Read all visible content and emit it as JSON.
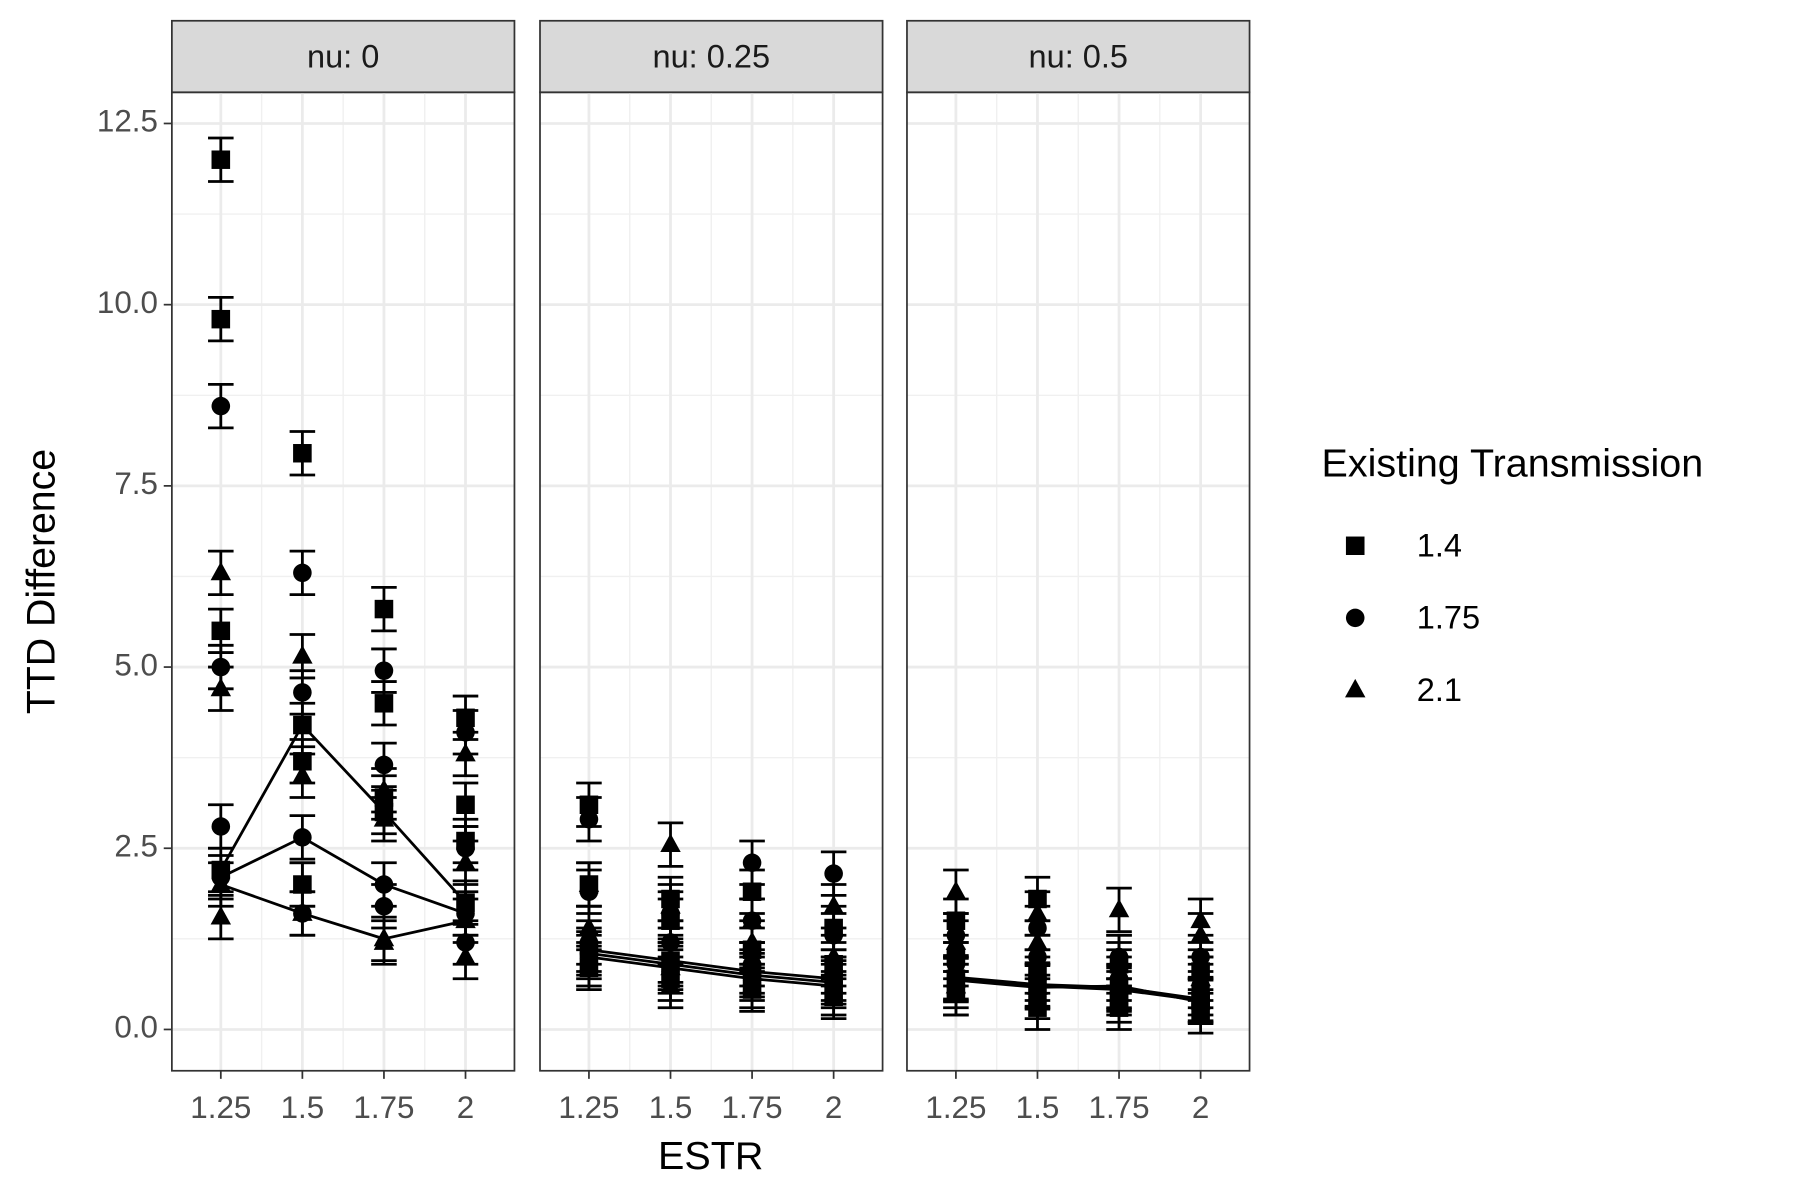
{
  "xlabel": "ESTR",
  "ylabel": "TTD Difference",
  "legend_title": "Existing Transmission",
  "legend_position": "right",
  "chart_data": [
    {
      "type": "scatter",
      "title": "nu: 0",
      "x": [
        1.25,
        1.5,
        1.75,
        2
      ],
      "xlim": [
        1.1,
        2.15
      ],
      "ylim": [
        -0.57,
        12.93
      ],
      "xticks": [
        1.25,
        1.5,
        1.75,
        2
      ],
      "yticks": [
        {
          "value": 0,
          "label": "0.0"
        },
        2.5,
        {
          "value": 5,
          "label": "5.0"
        },
        7.5,
        {
          "value": 10,
          "label": "10.0"
        },
        12.5
      ],
      "grid": true,
      "color": "#000000",
      "series": [
        {
          "name": "1.4",
          "marker": "square",
          "line": true,
          "values": [
            2.2,
            4.2,
            3.0,
            1.75
          ],
          "errors": [
            0.3,
            0.3,
            0.3,
            0.3
          ]
        },
        {
          "name": "1.75",
          "marker": "circle",
          "line": true,
          "values": [
            2.1,
            2.65,
            2.0,
            1.6
          ],
          "errors": [
            0.3,
            0.3,
            0.3,
            0.3
          ]
        },
        {
          "name": "2.1",
          "marker": "triangle",
          "line": true,
          "values": [
            2.0,
            1.6,
            1.25,
            1.5
          ],
          "errors": [
            0.3,
            0.3,
            0.3,
            0.3
          ]
        },
        {
          "name": "1.4",
          "marker": "square",
          "line": false,
          "values": [
            12.0,
            7.95,
            5.8,
            4.3
          ],
          "errors": [
            0.3,
            0.3,
            0.3,
            0.3
          ]
        },
        {
          "name": "1.4",
          "marker": "square",
          "line": false,
          "values": [
            9.8,
            3.7,
            4.5,
            3.1
          ],
          "errors": [
            0.3,
            0.3,
            0.3,
            0.3
          ]
        },
        {
          "name": "1.4",
          "marker": "square",
          "line": false,
          "values": [
            5.5,
            2.0,
            3.2,
            2.6
          ],
          "errors": [
            0.3,
            0.3,
            0.3,
            0.3
          ]
        },
        {
          "name": "1.75",
          "marker": "circle",
          "line": false,
          "values": [
            8.6,
            6.3,
            4.95,
            4.1
          ],
          "errors": [
            0.3,
            0.3,
            0.3,
            0.3
          ]
        },
        {
          "name": "1.75",
          "marker": "circle",
          "line": false,
          "values": [
            5.0,
            4.65,
            3.65,
            2.5
          ],
          "errors": [
            0.3,
            0.3,
            0.3,
            0.3
          ]
        },
        {
          "name": "1.75",
          "marker": "circle",
          "line": false,
          "values": [
            2.8,
            1.6,
            1.7,
            1.2
          ],
          "errors": [
            0.3,
            0.3,
            0.3,
            0.3
          ]
        },
        {
          "name": "2.1",
          "marker": "triangle",
          "line": false,
          "values": [
            6.3,
            5.15,
            3.3,
            3.8
          ],
          "errors": [
            0.3,
            0.3,
            0.3,
            0.3
          ]
        },
        {
          "name": "2.1",
          "marker": "triangle",
          "line": false,
          "values": [
            4.7,
            3.5,
            2.9,
            2.3
          ],
          "errors": [
            0.3,
            0.3,
            0.3,
            0.3
          ]
        },
        {
          "name": "2.1",
          "marker": "triangle",
          "line": false,
          "values": [
            1.55,
            2.0,
            1.2,
            1.0
          ],
          "errors": [
            0.3,
            0.3,
            0.3,
            0.3
          ]
        }
      ]
    },
    {
      "type": "scatter",
      "title": "nu: 0.25",
      "x": [
        1.25,
        1.5,
        1.75,
        2
      ],
      "xlim": [
        1.1,
        2.15
      ],
      "ylim": [
        -0.57,
        12.93
      ],
      "xticks": [
        1.25,
        1.5,
        1.75,
        2
      ],
      "yticks": [
        {
          "value": 0,
          "label": "0.0"
        },
        2.5,
        {
          "value": 5,
          "label": "5.0"
        },
        7.5,
        {
          "value": 10,
          "label": "10.0"
        },
        12.5
      ],
      "grid": true,
      "color": "#000000",
      "series": [
        {
          "name": "1.4",
          "marker": "square",
          "line": true,
          "values": [
            1.1,
            0.95,
            0.8,
            0.7
          ],
          "errors": [
            0.3,
            0.3,
            0.3,
            0.3
          ]
        },
        {
          "name": "1.75",
          "marker": "circle",
          "line": true,
          "values": [
            1.05,
            0.9,
            0.75,
            0.65
          ],
          "errors": [
            0.3,
            0.3,
            0.3,
            0.3
          ]
        },
        {
          "name": "2.1",
          "marker": "triangle",
          "line": true,
          "values": [
            1.0,
            0.85,
            0.7,
            0.6
          ],
          "errors": [
            0.3,
            0.3,
            0.3,
            0.3
          ]
        },
        {
          "name": "1.4",
          "marker": "square",
          "line": false,
          "values": [
            3.1,
            1.8,
            1.9,
            1.4
          ],
          "errors": [
            0.3,
            0.3,
            0.3,
            0.3
          ]
        },
        {
          "name": "1.4",
          "marker": "square",
          "line": false,
          "values": [
            2.0,
            1.5,
            1.1,
            0.9
          ],
          "errors": [
            0.3,
            0.3,
            0.3,
            0.3
          ]
        },
        {
          "name": "1.4",
          "marker": "square",
          "line": false,
          "values": [
            0.85,
            0.7,
            0.55,
            0.45
          ],
          "errors": [
            0.3,
            0.3,
            0.3,
            0.3
          ]
        },
        {
          "name": "1.75",
          "marker": "circle",
          "line": false,
          "values": [
            2.9,
            1.6,
            2.3,
            2.15
          ],
          "errors": [
            0.3,
            0.3,
            0.3,
            0.3
          ]
        },
        {
          "name": "1.75",
          "marker": "circle",
          "line": false,
          "values": [
            1.9,
            1.2,
            1.5,
            1.3
          ],
          "errors": [
            0.3,
            0.3,
            0.3,
            0.3
          ]
        },
        {
          "name": "1.75",
          "marker": "circle",
          "line": false,
          "values": [
            1.2,
            0.8,
            0.9,
            0.8
          ],
          "errors": [
            0.3,
            0.3,
            0.3,
            0.3
          ]
        },
        {
          "name": "2.1",
          "marker": "triangle",
          "line": false,
          "values": [
            2.0,
            2.55,
            1.5,
            1.7
          ],
          "errors": [
            0.3,
            0.3,
            0.3,
            0.3
          ]
        },
        {
          "name": "2.1",
          "marker": "triangle",
          "line": false,
          "values": [
            1.4,
            1.7,
            1.2,
            1.0
          ],
          "errors": [
            0.3,
            0.3,
            0.3,
            0.3
          ]
        },
        {
          "name": "2.1",
          "marker": "triangle",
          "line": false,
          "values": [
            0.9,
            0.6,
            0.6,
            0.5
          ],
          "errors": [
            0.3,
            0.3,
            0.3,
            0.3
          ]
        }
      ]
    },
    {
      "type": "scatter",
      "title": "nu: 0.5",
      "x": [
        1.25,
        1.5,
        1.75,
        2
      ],
      "xlim": [
        1.1,
        2.15
      ],
      "ylim": [
        -0.57,
        12.93
      ],
      "xticks": [
        1.25,
        1.5,
        1.75,
        2
      ],
      "yticks": [
        {
          "value": 0,
          "label": "0.0"
        },
        2.5,
        {
          "value": 5,
          "label": "5.0"
        },
        7.5,
        {
          "value": 10,
          "label": "10.0"
        },
        12.5
      ],
      "grid": true,
      "color": "#000000",
      "series": [
        {
          "name": "1.4",
          "marker": "square",
          "line": true,
          "values": [
            0.7,
            0.6,
            0.55,
            0.4
          ],
          "errors": [
            0.3,
            0.3,
            0.3,
            0.3
          ]
        },
        {
          "name": "1.75",
          "marker": "circle",
          "line": true,
          "values": [
            0.72,
            0.62,
            0.58,
            0.42
          ],
          "errors": [
            0.3,
            0.3,
            0.3,
            0.3
          ]
        },
        {
          "name": "2.1",
          "marker": "triangle",
          "line": true,
          "values": [
            0.68,
            0.58,
            0.6,
            0.38
          ],
          "errors": [
            0.3,
            0.3,
            0.3,
            0.3
          ]
        },
        {
          "name": "1.4",
          "marker": "square",
          "line": false,
          "values": [
            1.5,
            1.8,
            0.9,
            0.8
          ],
          "errors": [
            0.3,
            0.3,
            0.3,
            0.3
          ]
        },
        {
          "name": "1.4",
          "marker": "square",
          "line": false,
          "values": [
            1.0,
            0.8,
            0.4,
            0.4
          ],
          "errors": [
            0.3,
            0.3,
            0.3,
            0.3
          ]
        },
        {
          "name": "1.4",
          "marker": "square",
          "line": false,
          "values": [
            0.5,
            0.3,
            0.3,
            0.25
          ],
          "errors": [
            0.3,
            0.3,
            0.3,
            0.3
          ]
        },
        {
          "name": "1.75",
          "marker": "circle",
          "line": false,
          "values": [
            1.3,
            1.4,
            1.0,
            1.0
          ],
          "errors": [
            0.3,
            0.3,
            0.3,
            0.3
          ]
        },
        {
          "name": "1.75",
          "marker": "circle",
          "line": false,
          "values": [
            0.9,
            1.0,
            0.7,
            0.6
          ],
          "errors": [
            0.3,
            0.3,
            0.3,
            0.3
          ]
        },
        {
          "name": "1.75",
          "marker": "circle",
          "line": false,
          "values": [
            0.5,
            0.45,
            0.5,
            0.5
          ],
          "errors": [
            0.3,
            0.3,
            0.3,
            0.3
          ]
        },
        {
          "name": "2.1",
          "marker": "triangle",
          "line": false,
          "values": [
            1.9,
            1.6,
            1.65,
            1.5
          ],
          "errors": [
            0.3,
            0.3,
            0.3,
            0.3
          ]
        },
        {
          "name": "2.1",
          "marker": "triangle",
          "line": false,
          "values": [
            1.2,
            1.2,
            1.0,
            1.3
          ],
          "errors": [
            0.3,
            0.3,
            0.3,
            0.3
          ]
        },
        {
          "name": "2.1",
          "marker": "triangle",
          "line": false,
          "values": [
            0.6,
            0.7,
            0.8,
            0.7
          ],
          "errors": [
            0.3,
            0.3,
            0.3,
            0.3
          ]
        }
      ]
    }
  ]
}
